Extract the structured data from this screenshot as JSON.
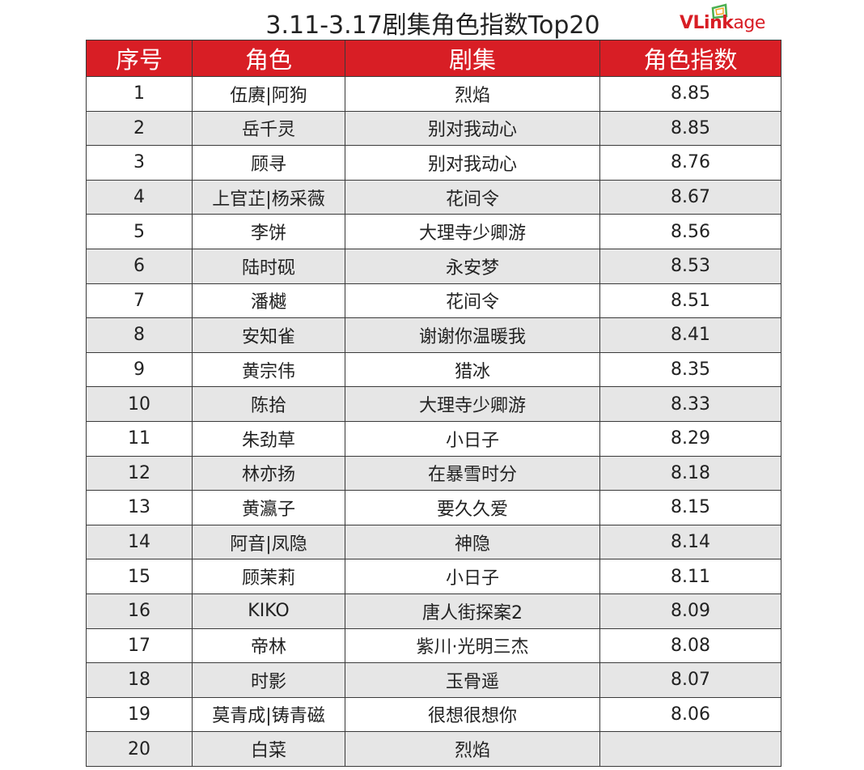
{
  "title": "3.11-3.17剧集角色指数Top20",
  "logo": {
    "brand": "VLink",
    "suffix": "age"
  },
  "colors": {
    "header_bg": "#d81e25",
    "stripe": "#e6e6e6",
    "logo_red": "#d81e25",
    "logo_green": "#4caf50"
  },
  "table": {
    "headers": [
      "序号",
      "角色",
      "剧集",
      "角色指数"
    ],
    "rows": [
      [
        "1",
        "伍赓|阿狗",
        "烈焰",
        "8.85"
      ],
      [
        "2",
        "岳千灵",
        "别对我动心",
        "8.85"
      ],
      [
        "3",
        "顾寻",
        "别对我动心",
        "8.76"
      ],
      [
        "4",
        "上官芷|杨采薇",
        "花间令",
        "8.67"
      ],
      [
        "5",
        "李饼",
        "大理寺少卿游",
        "8.56"
      ],
      [
        "6",
        "陆时砚",
        "永安梦",
        "8.53"
      ],
      [
        "7",
        "潘樾",
        "花间令",
        "8.51"
      ],
      [
        "8",
        "安知雀",
        "谢谢你温暖我",
        "8.41"
      ],
      [
        "9",
        "黄宗伟",
        "猎冰",
        "8.35"
      ],
      [
        "10",
        "陈拾",
        "大理寺少卿游",
        "8.33"
      ],
      [
        "11",
        "朱劲草",
        "小日子",
        "8.29"
      ],
      [
        "12",
        "林亦扬",
        "在暴雪时分",
        "8.18"
      ],
      [
        "13",
        "黄瀛子",
        "要久久爱",
        "8.15"
      ],
      [
        "14",
        "阿音|凤隐",
        "神隐",
        "8.14"
      ],
      [
        "15",
        "顾茉莉",
        "小日子",
        "8.11"
      ],
      [
        "16",
        "KIKO",
        "唐人街探案2",
        "8.09"
      ],
      [
        "17",
        "帝林",
        "紫川·光明三杰",
        "8.08"
      ],
      [
        "18",
        "时影",
        "玉骨遥",
        "8.07"
      ],
      [
        "19",
        "莫青成|铸青磁",
        "很想很想你",
        "8.06"
      ],
      [
        "20",
        "白菜",
        "烈焰",
        ""
      ]
    ]
  }
}
